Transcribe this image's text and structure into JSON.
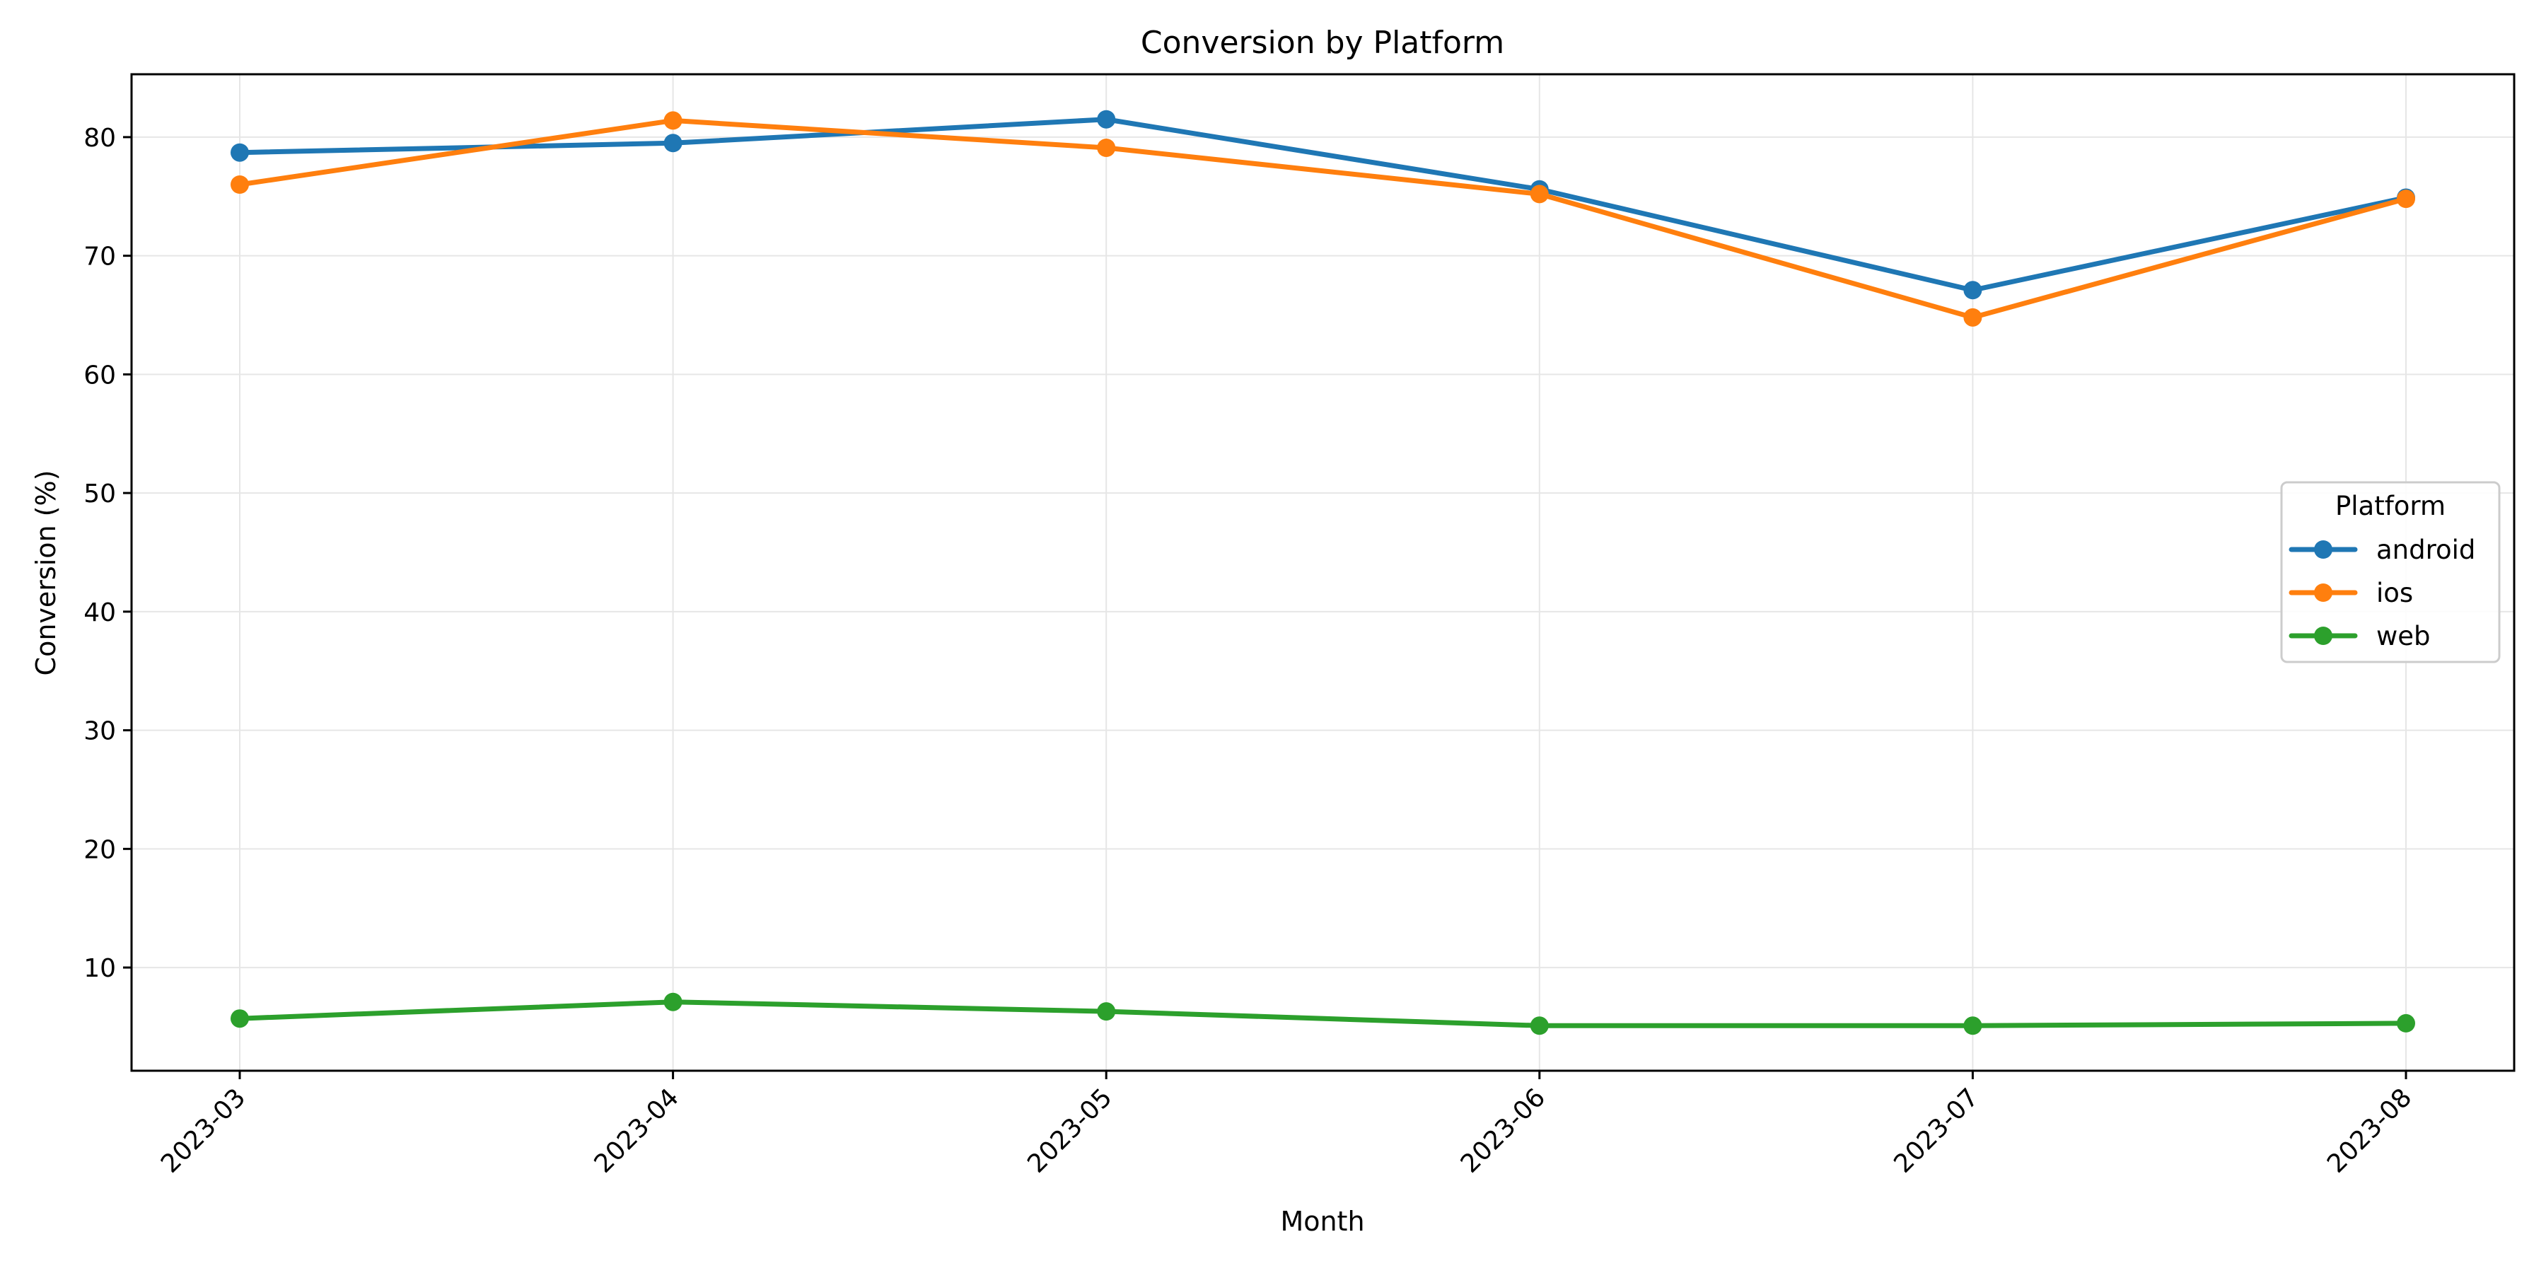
{
  "chart_data": {
    "type": "line",
    "title": "Conversion by Platform",
    "xlabel": "Month",
    "ylabel": "Conversion (%)",
    "categories": [
      "2023-03",
      "2023-04",
      "2023-05",
      "2023-06",
      "2023-07",
      "2023-08"
    ],
    "ylim": [
      1.3,
      85.3
    ],
    "yticks": [
      10,
      20,
      30,
      40,
      50,
      60,
      70,
      80
    ],
    "grid": true,
    "legend": {
      "title": "Platform",
      "placement": "center-right"
    },
    "series": [
      {
        "name": "android",
        "color": "#1f77b4",
        "values": [
          78.7,
          79.5,
          81.5,
          75.6,
          67.1,
          74.9
        ]
      },
      {
        "name": "ios",
        "color": "#ff7f0e",
        "values": [
          76.0,
          81.4,
          79.1,
          75.2,
          64.8,
          74.8
        ]
      },
      {
        "name": "web",
        "color": "#2ca02c",
        "values": [
          5.7,
          7.1,
          6.3,
          5.1,
          5.1,
          5.3
        ]
      }
    ]
  }
}
